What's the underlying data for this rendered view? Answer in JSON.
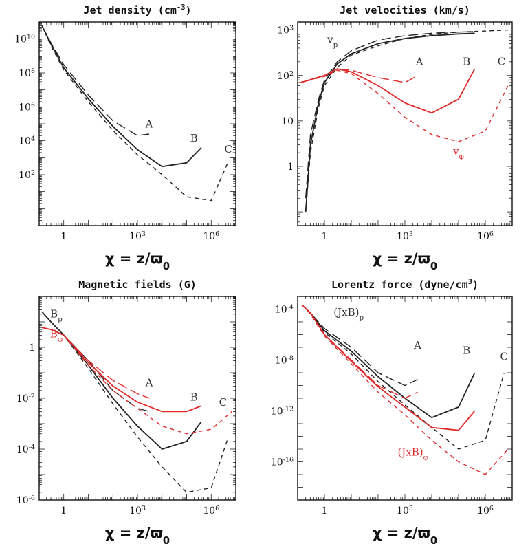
{
  "colors": {
    "black": "#222222",
    "red": "#e02a2a"
  },
  "chart_data": [
    {
      "id": "density",
      "type": "line",
      "title": "Jet density (cm",
      "title_sup": "-3",
      "title_end": ")",
      "xlabel": "χ = z/ϖ",
      "xlabel_sub": "0",
      "x_scale": "log",
      "y_scale": "log",
      "xlim": [
        0.1,
        10000000
      ],
      "ylim": [
        0.1,
        100000000000
      ],
      "x_ticks": [
        {
          "label": "1",
          "value": 1
        },
        {
          "label": "10",
          "sup": "3",
          "value": 1000
        },
        {
          "label": "10",
          "sup": "6",
          "value": 1000000
        }
      ],
      "y_ticks": [
        {
          "label": "10",
          "sup": "2",
          "value": 100
        },
        {
          "label": "10",
          "sup": "4",
          "value": 10000
        },
        {
          "label": "10",
          "sup": "6",
          "value": 1000000
        },
        {
          "label": "10",
          "sup": "8",
          "value": 100000000
        },
        {
          "label": "10",
          "sup": "10",
          "value": 10000000000
        }
      ],
      "series": [
        {
          "name": "A",
          "color": "black",
          "dash": "long",
          "width": 1.4,
          "x": [
            0.13,
            0.3,
            1,
            10,
            100,
            1000,
            3000
          ],
          "y": [
            60000000000,
            6000000000,
            300000000,
            5000000,
            150000,
            20000,
            25000
          ]
        },
        {
          "name": "B",
          "color": "black",
          "dash": "solid",
          "width": 1.8,
          "x": [
            0.13,
            0.3,
            1,
            10,
            100,
            1000,
            10000,
            100000,
            400000
          ],
          "y": [
            60000000000,
            5000000000,
            200000000,
            3000000,
            70000,
            3000,
            300,
            500,
            4000
          ]
        },
        {
          "name": "C",
          "color": "black",
          "dash": "short",
          "width": 1.4,
          "x": [
            0.13,
            0.3,
            1,
            10,
            100,
            1000,
            10000,
            100000,
            1000000,
            5000000
          ],
          "y": [
            60000000000,
            4000000000,
            150000000,
            2000000,
            40000,
            1500,
            100,
            5,
            3,
            600
          ]
        }
      ],
      "annotations": [
        {
          "text": "A",
          "color": "black",
          "x": 3000,
          "y": 60000
        },
        {
          "text": "B",
          "color": "black",
          "x": 200000,
          "y": 9000
        },
        {
          "text": "C",
          "color": "black",
          "x": 5000000,
          "y": 2000
        }
      ]
    },
    {
      "id": "velocity",
      "type": "line",
      "title": "Jet velocities (km/s)",
      "xlabel": "χ = z/ϖ",
      "xlabel_sub": "0",
      "x_scale": "log",
      "y_scale": "log",
      "xlim": [
        0.1,
        10000000
      ],
      "ylim": [
        0.05,
        1500
      ],
      "x_ticks": [
        {
          "label": "1",
          "value": 1
        },
        {
          "label": "10",
          "sup": "3",
          "value": 1000
        },
        {
          "label": "10",
          "sup": "6",
          "value": 1000000
        }
      ],
      "y_ticks": [
        {
          "label": "1",
          "value": 1
        },
        {
          "label": "10",
          "value": 10
        },
        {
          "label": "10",
          "sup": "2",
          "value": 100
        },
        {
          "label": "10",
          "sup": "3",
          "value": 1000
        }
      ],
      "series": [
        {
          "name": "vp A",
          "color": "black",
          "dash": "long",
          "width": 1.4,
          "x": [
            0.2,
            0.3,
            0.6,
            1,
            3,
            10,
            100,
            1000,
            10000,
            100000,
            400000
          ],
          "y": [
            0.2,
            5,
            30,
            80,
            200,
            350,
            600,
            750,
            850,
            900,
            920
          ]
        },
        {
          "name": "vp B",
          "color": "black",
          "dash": "solid",
          "width": 1.8,
          "x": [
            0.2,
            0.3,
            0.6,
            1,
            3,
            10,
            100,
            1000,
            10000,
            100000,
            400000
          ],
          "y": [
            0.1,
            3,
            25,
            70,
            180,
            300,
            500,
            650,
            750,
            820,
            850
          ]
        },
        {
          "name": "vp C",
          "color": "black",
          "dash": "short",
          "width": 1.4,
          "x": [
            0.2,
            0.3,
            0.6,
            1,
            3,
            10,
            100,
            1000,
            10000,
            100000,
            1000000,
            7000000
          ],
          "y": [
            0.1,
            2,
            20,
            60,
            150,
            280,
            450,
            650,
            800,
            900,
            950,
            1000
          ]
        },
        {
          "name": "vphi A",
          "color": "red",
          "dash": "long",
          "width": 1.4,
          "x": [
            0.13,
            1,
            3,
            10,
            100,
            1000,
            3000
          ],
          "y": [
            70,
            100,
            140,
            130,
            90,
            70,
            100
          ]
        },
        {
          "name": "vphi B",
          "color": "red",
          "dash": "solid",
          "width": 1.8,
          "x": [
            0.13,
            1,
            3,
            10,
            100,
            1000,
            10000,
            100000,
            400000
          ],
          "y": [
            70,
            100,
            140,
            120,
            60,
            25,
            15,
            30,
            140
          ]
        },
        {
          "name": "vphi C",
          "color": "red",
          "dash": "short",
          "width": 1.4,
          "x": [
            0.13,
            1,
            3,
            10,
            100,
            1000,
            10000,
            100000,
            1000000,
            7000000
          ],
          "y": [
            70,
            95,
            130,
            110,
            40,
            12,
            5,
            3.5,
            6,
            60
          ]
        }
      ],
      "annotations": [
        {
          "text": "v",
          "sub": "p",
          "color": "black",
          "x": 2,
          "y": 520
        },
        {
          "text": "A",
          "color": "black",
          "x": 3500,
          "y": 170
        },
        {
          "text": "B",
          "color": "black",
          "x": 200000,
          "y": 170
        },
        {
          "text": "C",
          "color": "black",
          "x": 4000000,
          "y": 170
        },
        {
          "text": "v",
          "sub": "φ",
          "color": "red",
          "x": 100000,
          "y": 1.8
        }
      ]
    },
    {
      "id": "fields",
      "type": "line",
      "title": "Magnetic fields (G)",
      "xlabel": "χ = z/ϖ",
      "xlabel_sub": "0",
      "x_scale": "log",
      "y_scale": "log",
      "xlim": [
        0.1,
        10000000
      ],
      "ylim": [
        1e-06,
        100
      ],
      "x_ticks": [
        {
          "label": "1",
          "value": 1
        },
        {
          "label": "10",
          "sup": "3",
          "value": 1000
        },
        {
          "label": "10",
          "sup": "6",
          "value": 1000000
        }
      ],
      "y_ticks": [
        {
          "label": "10",
          "sup": "-6",
          "value": 1e-06
        },
        {
          "label": "10",
          "sup": "-4",
          "value": 0.0001
        },
        {
          "label": "10",
          "sup": "-2",
          "value": 0.01
        },
        {
          "label": "1",
          "value": 1
        }
      ],
      "series": [
        {
          "name": "Bp A",
          "color": "black",
          "dash": "long",
          "width": 1.4,
          "x": [
            0.13,
            0.3,
            1,
            10,
            100,
            1000,
            3000
          ],
          "y": [
            25,
            10,
            3,
            0.3,
            0.02,
            0.004,
            0.003
          ]
        },
        {
          "name": "Bp B",
          "color": "black",
          "dash": "solid",
          "width": 1.8,
          "x": [
            0.13,
            0.3,
            1,
            10,
            100,
            1000,
            10000,
            100000,
            400000
          ],
          "y": [
            25,
            10,
            3,
            0.2,
            0.01,
            0.0008,
            0.0001,
            0.0002,
            0.0012
          ]
        },
        {
          "name": "Bp C",
          "color": "black",
          "dash": "short",
          "width": 1.4,
          "x": [
            0.13,
            0.3,
            1,
            10,
            100,
            1000,
            10000,
            100000,
            1000000,
            5000000
          ],
          "y": [
            25,
            10,
            3,
            0.15,
            0.006,
            0.0003,
            2e-05,
            2e-06,
            3e-06,
            0.0003
          ]
        },
        {
          "name": "Bphi A",
          "color": "red",
          "dash": "long",
          "width": 1.4,
          "x": [
            0.13,
            0.3,
            1,
            10,
            100,
            1000,
            3000
          ],
          "y": [
            6,
            5,
            3,
            0.3,
            0.05,
            0.015,
            0.01
          ]
        },
        {
          "name": "Bphi B",
          "color": "red",
          "dash": "solid",
          "width": 1.8,
          "x": [
            0.13,
            0.3,
            1,
            10,
            100,
            1000,
            10000,
            100000,
            400000
          ],
          "y": [
            6,
            5,
            3,
            0.25,
            0.03,
            0.007,
            0.003,
            0.003,
            0.005
          ]
        },
        {
          "name": "Bphi C",
          "color": "red",
          "dash": "short",
          "width": 1.4,
          "x": [
            0.13,
            0.3,
            1,
            10,
            100,
            1000,
            10000,
            100000,
            1000000,
            7000000
          ],
          "y": [
            6,
            5,
            3,
            0.2,
            0.02,
            0.004,
            0.0008,
            0.0004,
            0.0006,
            0.003
          ]
        }
      ],
      "annotations": [
        {
          "text": "B",
          "sub": "p",
          "color": "black",
          "x": 0.5,
          "y": 15
        },
        {
          "text": "B",
          "sub": "φ",
          "color": "red",
          "x": 0.5,
          "y": 2.5
        },
        {
          "text": "A",
          "color": "black",
          "x": 3000,
          "y": 0.03
        },
        {
          "text": "B",
          "color": "black",
          "x": 200000,
          "y": 0.008
        },
        {
          "text": "C",
          "color": "black",
          "x": 3000000,
          "y": 0.005
        }
      ]
    },
    {
      "id": "lorentz",
      "type": "line",
      "title": "Lorentz force (dyne/cm",
      "title_sup": "3",
      "title_end": ")",
      "xlabel": "χ = z/ϖ",
      "xlabel_sub": "0",
      "x_scale": "log",
      "y_scale": "log",
      "xlim": [
        0.1,
        10000000
      ],
      "ylim": 1e-19,
      "ylim_max": 0.001,
      "x_ticks": [
        {
          "label": "1",
          "value": 1
        },
        {
          "label": "10",
          "sup": "3",
          "value": 1000
        },
        {
          "label": "10",
          "sup": "6",
          "value": 1000000
        }
      ],
      "y_ticks": [
        {
          "label": "10",
          "sup": "-16",
          "value": 1e-16
        },
        {
          "label": "10",
          "sup": "-12",
          "value": 1e-12
        },
        {
          "label": "10",
          "sup": "-8",
          "value": 1e-08
        },
        {
          "label": "10",
          "sup": "-4",
          "value": 0.0001
        }
      ],
      "series": [
        {
          "name": "JxB p A",
          "color": "black",
          "dash": "long",
          "width": 1.4,
          "x": [
            0.15,
            0.3,
            1,
            10,
            100,
            1000,
            3000
          ],
          "y": [
            0.0002,
            5e-05,
            3e-06,
            1e-07,
            1e-09,
            1e-10,
            3e-10
          ]
        },
        {
          "name": "JxB p B",
          "color": "black",
          "dash": "solid",
          "width": 1.8,
          "x": [
            0.15,
            0.3,
            1,
            10,
            100,
            1000,
            10000,
            100000,
            400000
          ],
          "y": [
            0.0002,
            5e-05,
            2e-06,
            5e-08,
            5e-10,
            1e-11,
            3e-13,
            2e-12,
            1e-09
          ]
        },
        {
          "name": "JxB p C",
          "color": "black",
          "dash": "short",
          "width": 1.4,
          "x": [
            0.15,
            0.3,
            1,
            10,
            100,
            1000,
            10000,
            100000,
            1000000,
            5000000
          ],
          "y": [
            0.0002,
            5e-05,
            1.5e-06,
            3e-08,
            2e-10,
            3e-12,
            5e-14,
            1e-15,
            5e-15,
            1e-09
          ]
        },
        {
          "name": "JxB phi A",
          "color": "red",
          "dash": "long",
          "width": 1.4,
          "x": [
            0.15,
            0.3,
            1,
            10,
            100,
            1000,
            3000
          ],
          "y": [
            0.0002,
            5e-05,
            1e-06,
            1e-08,
            1e-10,
            1e-11,
            3e-11
          ]
        },
        {
          "name": "JxB phi B",
          "color": "red",
          "dash": "solid",
          "width": 1.8,
          "x": [
            0.15,
            0.3,
            1,
            10,
            100,
            1000,
            10000,
            100000,
            400000
          ],
          "y": [
            0.0002,
            5e-05,
            1e-06,
            8e-09,
            8e-11,
            2e-12,
            5e-14,
            3e-14,
            1e-12
          ]
        },
        {
          "name": "JxB phi C",
          "color": "red",
          "dash": "short",
          "width": 1.4,
          "x": [
            0.15,
            0.3,
            1,
            10,
            100,
            1000,
            10000,
            100000,
            1000000,
            7000000
          ],
          "y": [
            0.0002,
            4e-05,
            8e-07,
            5e-09,
            3e-11,
            5e-13,
            5e-15,
            1e-16,
            1e-17,
            1e-15
          ]
        }
      ],
      "annotations": [
        {
          "text": "(JxB)",
          "sub": "p",
          "color": "black",
          "x": 8,
          "y": 3e-05
        },
        {
          "text": "A",
          "color": "black",
          "x": 3000,
          "y": 8e-08
        },
        {
          "text": "B",
          "color": "black",
          "x": 200000,
          "y": 3e-08
        },
        {
          "text": "C",
          "color": "black",
          "x": 5000000,
          "y": 1e-08
        },
        {
          "text": "(JxB)",
          "sub": "φ",
          "color": "red",
          "x": 2000,
          "y": 3e-16
        }
      ]
    }
  ]
}
